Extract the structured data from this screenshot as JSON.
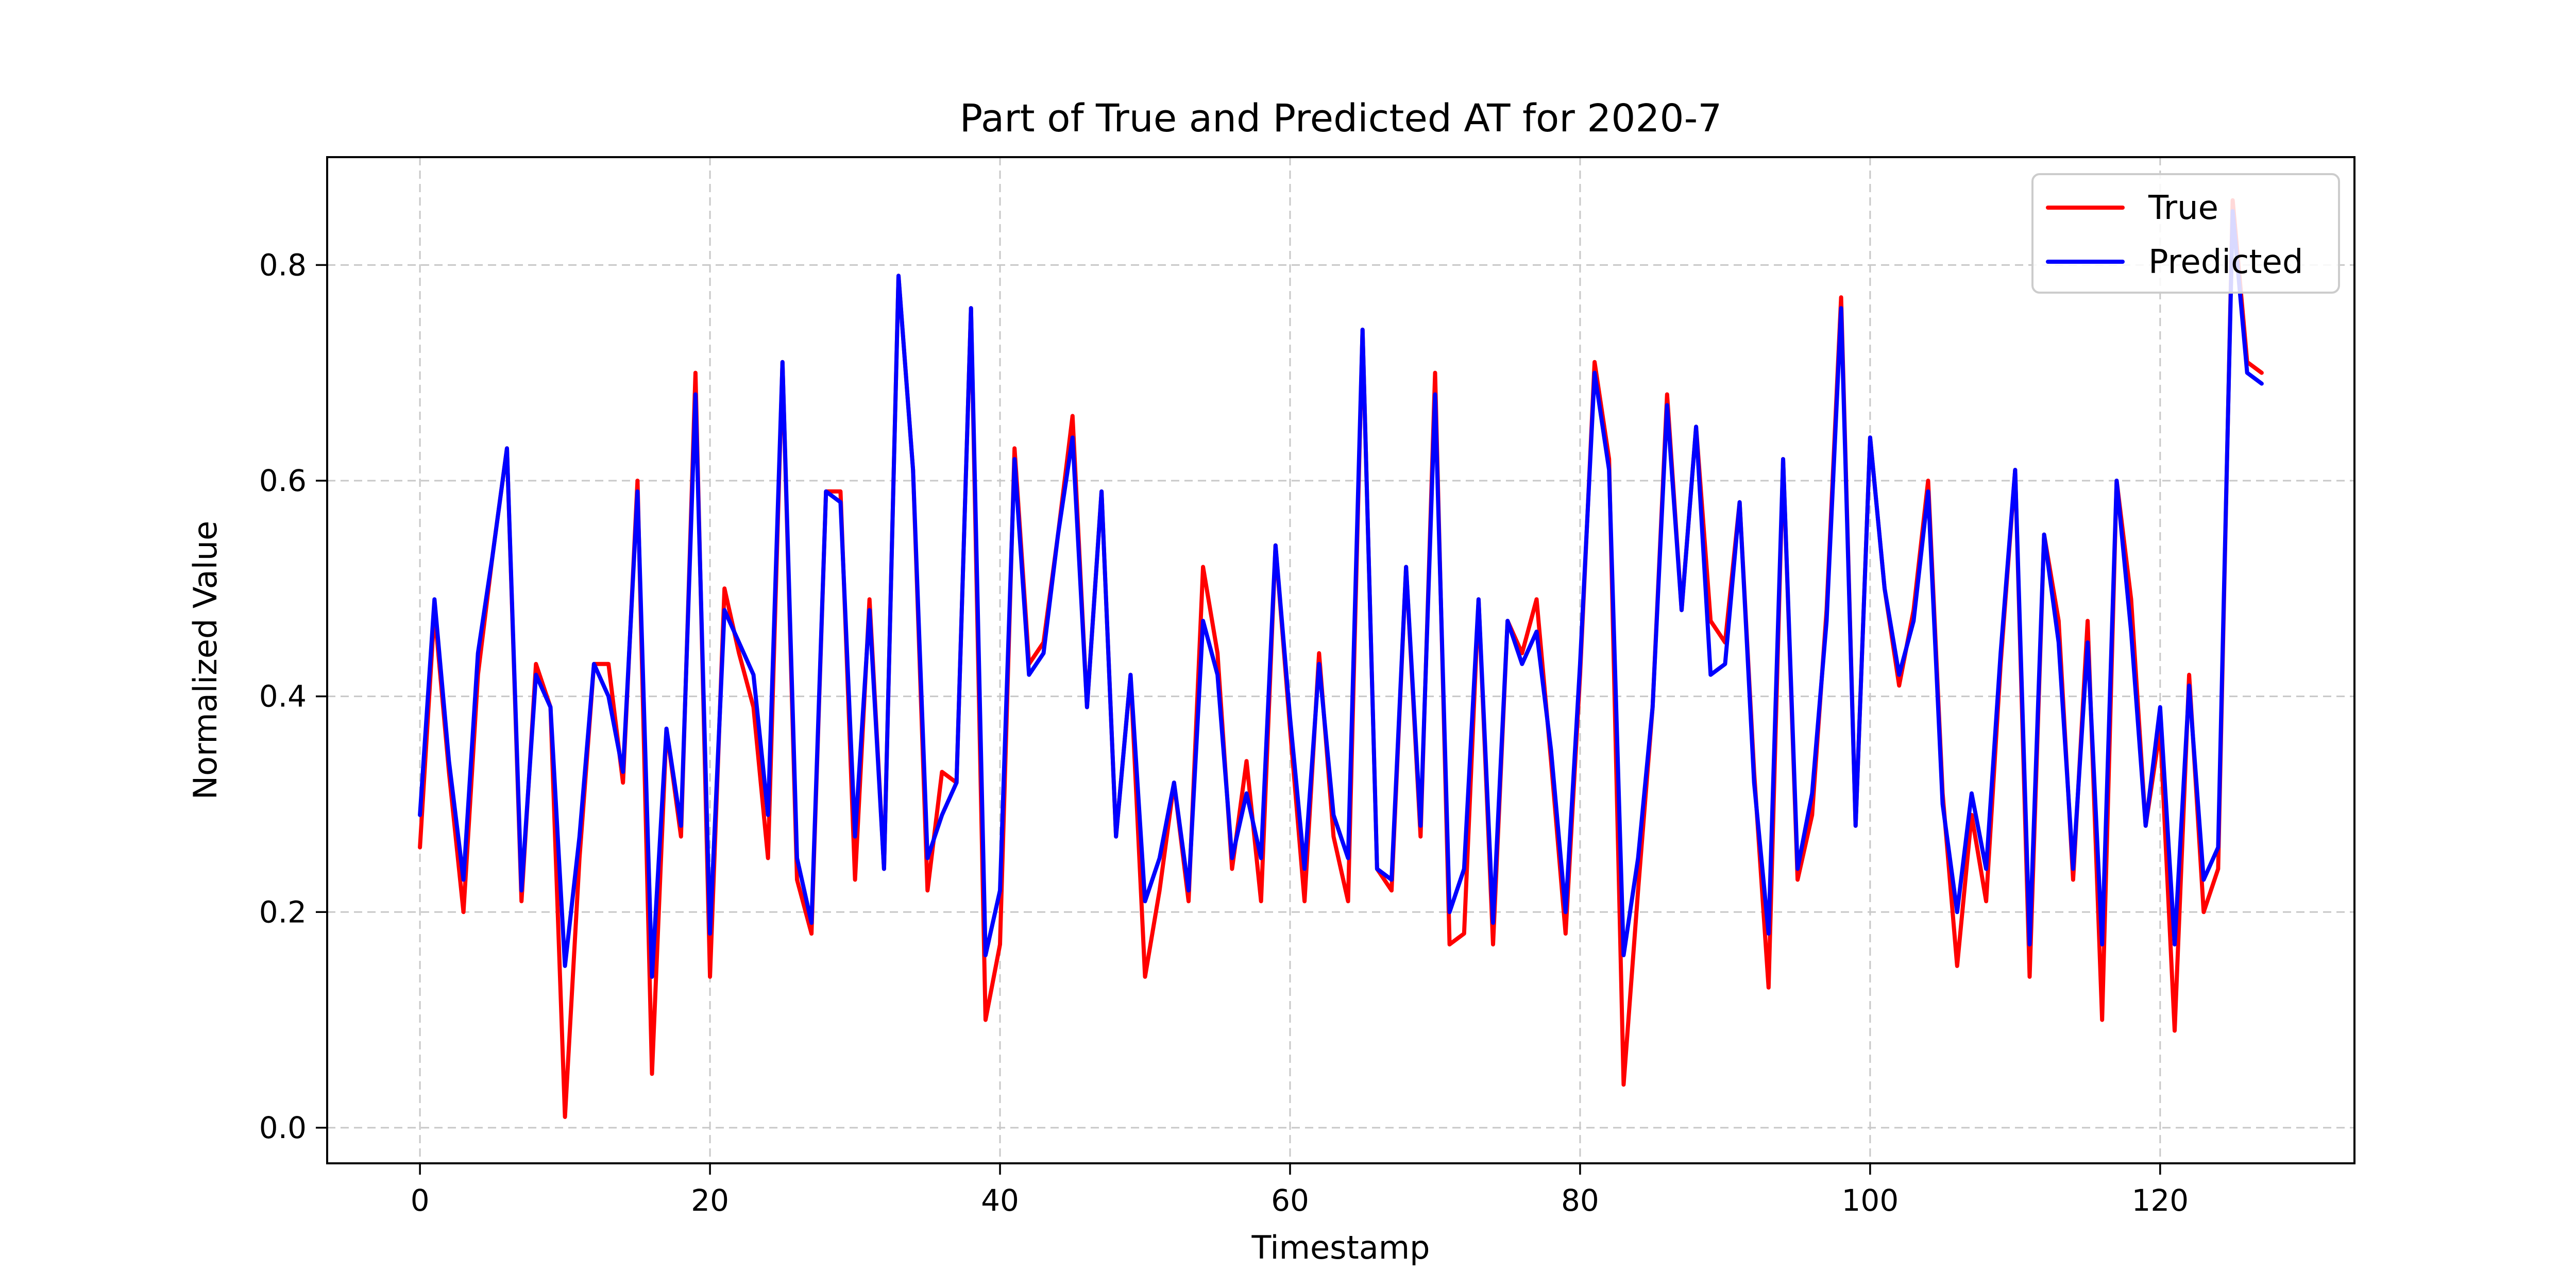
{
  "chart_data": {
    "type": "line",
    "title": "Part of True and Predicted AT for 2020-7",
    "xlabel": "Timestamp",
    "ylabel": "Normalized Value",
    "xlim": [
      -6.4,
      133.4
    ],
    "ylim": [
      -0.033,
      0.9
    ],
    "xticks": [
      0,
      20,
      40,
      60,
      80,
      100,
      120
    ],
    "yticks": [
      0.0,
      0.2,
      0.4,
      0.6,
      0.8
    ],
    "xtick_labels": [
      "0",
      "20",
      "40",
      "60",
      "80",
      "100",
      "120"
    ],
    "ytick_labels": [
      "0.0",
      "0.2",
      "0.4",
      "0.6",
      "0.8"
    ],
    "grid": true,
    "legend_position": "upper right",
    "series": [
      {
        "name": "True",
        "color": "#ff0000",
        "values": [
          0.26,
          0.48,
          0.33,
          0.2,
          0.42,
          0.53,
          0.63,
          0.21,
          0.43,
          0.39,
          0.01,
          0.25,
          0.43,
          0.43,
          0.32,
          0.6,
          0.05,
          0.37,
          0.27,
          0.7,
          0.14,
          0.5,
          0.44,
          0.39,
          0.25,
          0.71,
          0.23,
          0.18,
          0.59,
          0.59,
          0.23,
          0.49,
          0.24,
          0.79,
          0.61,
          0.22,
          0.33,
          0.32,
          0.76,
          0.1,
          0.17,
          0.63,
          0.43,
          0.45,
          0.55,
          0.66,
          0.39,
          0.59,
          0.27,
          0.42,
          0.14,
          0.22,
          0.32,
          0.21,
          0.52,
          0.44,
          0.24,
          0.34,
          0.21,
          0.54,
          0.37,
          0.21,
          0.44,
          0.27,
          0.21,
          0.74,
          0.24,
          0.22,
          0.52,
          0.27,
          0.7,
          0.17,
          0.18,
          0.49,
          0.17,
          0.47,
          0.44,
          0.49,
          0.34,
          0.18,
          0.42,
          0.71,
          0.62,
          0.04,
          0.22,
          0.39,
          0.68,
          0.48,
          0.65,
          0.47,
          0.45,
          0.58,
          0.33,
          0.13,
          0.62,
          0.23,
          0.29,
          0.48,
          0.77,
          0.28,
          0.64,
          0.5,
          0.41,
          0.48,
          0.6,
          0.31,
          0.15,
          0.29,
          0.21,
          0.43,
          0.61,
          0.14,
          0.55,
          0.47,
          0.23,
          0.47,
          0.1,
          0.6,
          0.49,
          0.28,
          0.37,
          0.09,
          0.42,
          0.2,
          0.24,
          0.86,
          0.71,
          0.7
        ]
      },
      {
        "name": "Predicted",
        "color": "#0000ff",
        "values": [
          0.29,
          0.49,
          0.34,
          0.23,
          0.44,
          0.53,
          0.63,
          0.22,
          0.42,
          0.39,
          0.15,
          0.27,
          0.43,
          0.4,
          0.33,
          0.59,
          0.14,
          0.37,
          0.28,
          0.68,
          0.18,
          0.48,
          0.45,
          0.42,
          0.29,
          0.71,
          0.25,
          0.19,
          0.59,
          0.58,
          0.27,
          0.48,
          0.24,
          0.79,
          0.61,
          0.25,
          0.29,
          0.32,
          0.76,
          0.16,
          0.22,
          0.62,
          0.42,
          0.44,
          0.55,
          0.64,
          0.39,
          0.59,
          0.27,
          0.42,
          0.21,
          0.25,
          0.32,
          0.22,
          0.47,
          0.42,
          0.25,
          0.31,
          0.25,
          0.54,
          0.38,
          0.24,
          0.43,
          0.29,
          0.25,
          0.74,
          0.24,
          0.23,
          0.52,
          0.28,
          0.68,
          0.2,
          0.24,
          0.49,
          0.19,
          0.47,
          0.43,
          0.46,
          0.35,
          0.2,
          0.43,
          0.7,
          0.61,
          0.16,
          0.25,
          0.39,
          0.67,
          0.48,
          0.65,
          0.42,
          0.43,
          0.58,
          0.32,
          0.18,
          0.62,
          0.24,
          0.31,
          0.47,
          0.76,
          0.28,
          0.64,
          0.5,
          0.42,
          0.47,
          0.59,
          0.3,
          0.2,
          0.31,
          0.24,
          0.44,
          0.61,
          0.17,
          0.55,
          0.45,
          0.24,
          0.45,
          0.17,
          0.6,
          0.46,
          0.28,
          0.39,
          0.17,
          0.41,
          0.23,
          0.26,
          0.85,
          0.7,
          0.69
        ]
      }
    ]
  }
}
